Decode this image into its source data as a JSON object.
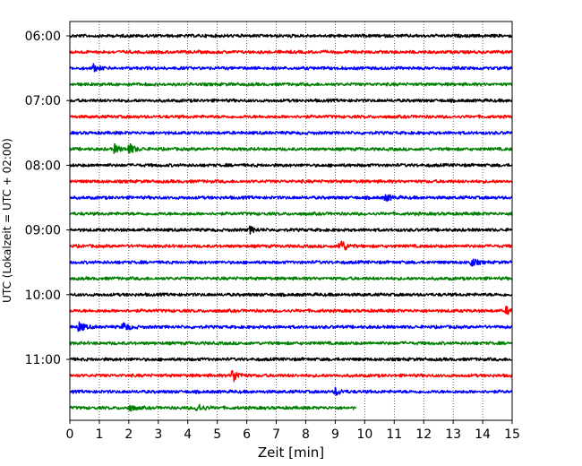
{
  "chart_data": {
    "type": "line",
    "subtype": "helicorder",
    "xlabel": "Zeit  [min]",
    "ylabel": "UTC (Lokalzeit = UTC + 02:00)",
    "xlim": [
      0,
      15
    ],
    "x_ticks": [
      0,
      1,
      2,
      3,
      4,
      5,
      6,
      7,
      8,
      9,
      10,
      11,
      12,
      13,
      14,
      15
    ],
    "y_tick_labels": [
      "06:00",
      "07:00",
      "08:00",
      "09:00",
      "10:00",
      "11:00"
    ],
    "grid": "vertical dotted at each minute",
    "colors_cycle": [
      "#000000",
      "#ff0000",
      "#0000ff",
      "#008000"
    ],
    "traces": [
      {
        "start": "06:00",
        "color": "#000000",
        "end_min": 15,
        "events": []
      },
      {
        "start": "06:15",
        "color": "#ff0000",
        "end_min": 15,
        "events": []
      },
      {
        "start": "06:30",
        "color": "#0000ff",
        "end_min": 15,
        "events": [
          {
            "t": 0.8,
            "amp": 0.25
          }
        ]
      },
      {
        "start": "06:45",
        "color": "#008000",
        "end_min": 15,
        "events": []
      },
      {
        "start": "07:00",
        "color": "#000000",
        "end_min": 15,
        "events": []
      },
      {
        "start": "07:15",
        "color": "#ff0000",
        "end_min": 15,
        "events": []
      },
      {
        "start": "07:30",
        "color": "#0000ff",
        "end_min": 15,
        "events": []
      },
      {
        "start": "07:45",
        "color": "#008000",
        "end_min": 15,
        "events": [
          {
            "t": 1.5,
            "amp": 0.35
          },
          {
            "t": 2.0,
            "amp": 0.45
          }
        ]
      },
      {
        "start": "08:00",
        "color": "#000000",
        "end_min": 15,
        "events": []
      },
      {
        "start": "08:15",
        "color": "#ff0000",
        "end_min": 15,
        "events": []
      },
      {
        "start": "08:30",
        "color": "#0000ff",
        "end_min": 15,
        "events": [
          {
            "t": 10.7,
            "amp": 0.3
          }
        ]
      },
      {
        "start": "08:45",
        "color": "#008000",
        "end_min": 15,
        "events": []
      },
      {
        "start": "09:00",
        "color": "#000000",
        "end_min": 15,
        "events": [
          {
            "t": 6.1,
            "amp": 0.25
          }
        ]
      },
      {
        "start": "09:15",
        "color": "#ff0000",
        "end_min": 15,
        "events": [
          {
            "t": 9.15,
            "amp": 0.7
          }
        ]
      },
      {
        "start": "09:30",
        "color": "#0000ff",
        "end_min": 15,
        "events": [
          {
            "t": 13.6,
            "amp": 0.35
          }
        ]
      },
      {
        "start": "09:45",
        "color": "#008000",
        "end_min": 15,
        "events": []
      },
      {
        "start": "10:00",
        "color": "#000000",
        "end_min": 15,
        "events": []
      },
      {
        "start": "10:15",
        "color": "#ff0000",
        "end_min": 15,
        "events": [
          {
            "t": 14.8,
            "amp": 0.3
          }
        ]
      },
      {
        "start": "10:30",
        "color": "#0000ff",
        "end_min": 15,
        "events": [
          {
            "t": 0.3,
            "amp": 0.4
          },
          {
            "t": 1.8,
            "amp": 0.4
          }
        ]
      },
      {
        "start": "10:45",
        "color": "#008000",
        "end_min": 15,
        "events": []
      },
      {
        "start": "11:00",
        "color": "#000000",
        "end_min": 15,
        "events": []
      },
      {
        "start": "11:15",
        "color": "#ff0000",
        "end_min": 15,
        "events": [
          {
            "t": 5.5,
            "amp": 0.65
          }
        ]
      },
      {
        "start": "11:30",
        "color": "#0000ff",
        "end_min": 15,
        "events": [
          {
            "t": 9.0,
            "amp": 0.3
          }
        ]
      },
      {
        "start": "11:45",
        "color": "#008000",
        "end_min": 9.7,
        "events": [
          {
            "t": 2.0,
            "amp": 0.25
          },
          {
            "t": 4.3,
            "amp": 0.4
          }
        ]
      }
    ]
  }
}
